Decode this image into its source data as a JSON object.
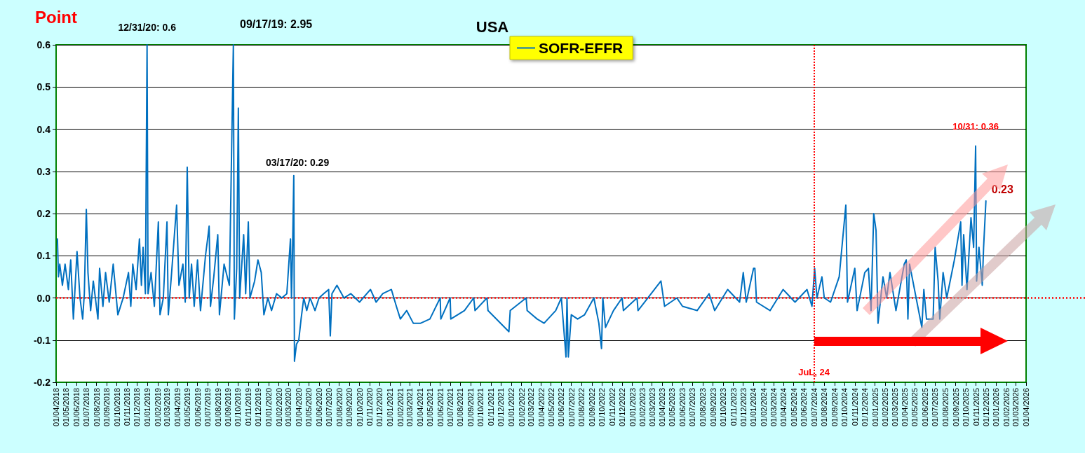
{
  "chart_data": {
    "type": "line",
    "title": "USA",
    "ylabel": "Point",
    "legend": "top",
    "annotations": [
      {
        "text": "12/31/20: 0.6",
        "x": "2018-12-31",
        "y": 0.6
      },
      "09/17/19: 2.95",
      {
        "text": "03/17/20: 0.29",
        "x": "2020-03-17",
        "y": 0.29
      },
      {
        "text": "10/31: 0.36",
        "x": "2025-10-31",
        "y": 0.36
      },
      {
        "text": "0.23",
        "x": "2025-12-01",
        "y": 0.23
      }
    ],
    "grid": "y",
    "marker": "none",
    "line_style": "solid",
    "ylim": [
      -0.2,
      0.6
    ],
    "yticks": [
      -0.2,
      -0.1,
      {
        "value": 0,
        "label": "0.0"
      },
      0.1,
      0.2,
      0.3,
      0.4,
      0.5,
      0.6
    ],
    "xlim": [
      "2018-04-01",
      "2026-04-01"
    ],
    "xticks": [
      {
        "value": "2018-04-01",
        "label": "01/04/2018"
      },
      {
        "value": "2018-05-01",
        "label": "01/05/2018"
      },
      {
        "value": "2018-06-01",
        "label": "01/06/2018"
      },
      {
        "value": "2018-07-01",
        "label": "01/07/2018"
      },
      {
        "value": "2018-08-01",
        "label": "01/08/2018"
      },
      {
        "value": "2018-09-01",
        "label": "01/09/2018"
      },
      {
        "value": "2018-10-01",
        "label": "01/10/2018"
      },
      {
        "value": "2018-11-01",
        "label": "01/11/2018"
      },
      {
        "value": "2018-12-01",
        "label": "01/12/2018"
      },
      {
        "value": "2019-01-01",
        "label": "01/01/2019"
      },
      {
        "value": "2019-02-01",
        "label": "01/02/2019"
      },
      {
        "value": "2019-03-01",
        "label": "01/03/2019"
      },
      {
        "value": "2019-04-01",
        "label": "01/04/2019"
      },
      {
        "value": "2019-05-01",
        "label": "01/05/2019"
      },
      {
        "value": "2019-06-01",
        "label": "01/06/2019"
      },
      {
        "value": "2019-07-01",
        "label": "01/07/2019"
      },
      {
        "value": "2019-08-01",
        "label": "01/08/2019"
      },
      {
        "value": "2019-09-01",
        "label": "01/09/2019"
      },
      {
        "value": "2019-10-01",
        "label": "01/10/2019"
      },
      {
        "value": "2019-11-01",
        "label": "01/11/2019"
      },
      {
        "value": "2019-12-01",
        "label": "01/12/2019"
      },
      {
        "value": "2020-01-01",
        "label": "01/01/2020"
      },
      {
        "value": "2020-02-01",
        "label": "01/02/2020"
      },
      {
        "value": "2020-03-01",
        "label": "01/03/2020"
      },
      {
        "value": "2020-04-01",
        "label": "01/04/2020"
      },
      {
        "value": "2020-05-01",
        "label": "01/05/2020"
      },
      {
        "value": "2020-06-01",
        "label": "01/06/2020"
      },
      {
        "value": "2020-07-01",
        "label": "01/07/2020"
      },
      {
        "value": "2020-08-01",
        "label": "01/08/2020"
      },
      {
        "value": "2020-09-01",
        "label": "01/09/2020"
      },
      {
        "value": "2020-10-01",
        "label": "01/10/2020"
      },
      {
        "value": "2020-11-01",
        "label": "01/11/2020"
      },
      {
        "value": "2020-12-01",
        "label": "01/12/2020"
      },
      {
        "value": "2021-01-01",
        "label": "01/01/2021"
      },
      {
        "value": "2021-02-01",
        "label": "01/02/2021"
      },
      {
        "value": "2021-03-01",
        "label": "01/03/2021"
      },
      {
        "value": "2021-04-01",
        "label": "01/04/2021"
      },
      {
        "value": "2021-05-01",
        "label": "01/05/2021"
      },
      {
        "value": "2021-06-01",
        "label": "01/06/2021"
      },
      {
        "value": "2021-07-01",
        "label": "01/07/2021"
      },
      {
        "value": "2021-08-01",
        "label": "01/08/2021"
      },
      {
        "value": "2021-09-01",
        "label": "01/09/2021"
      },
      {
        "value": "2021-10-01",
        "label": "01/10/2021"
      },
      {
        "value": "2021-11-01",
        "label": "01/11/2021"
      },
      {
        "value": "2021-12-01",
        "label": "01/12/2021"
      },
      {
        "value": "2022-01-01",
        "label": "01/01/2022"
      },
      {
        "value": "2022-02-01",
        "label": "01/02/2022"
      },
      {
        "value": "2022-03-01",
        "label": "01/03/2022"
      },
      {
        "value": "2022-04-01",
        "label": "01/04/2022"
      },
      {
        "value": "2022-05-01",
        "label": "01/05/2022"
      },
      {
        "value": "2022-06-01",
        "label": "01/06/2022"
      },
      {
        "value": "2022-07-01",
        "label": "01/07/2022"
      },
      {
        "value": "2022-08-01",
        "label": "01/08/2022"
      },
      {
        "value": "2022-09-01",
        "label": "01/09/2022"
      },
      {
        "value": "2022-10-01",
        "label": "01/10/2022"
      },
      {
        "value": "2022-11-01",
        "label": "01/11/2022"
      },
      {
        "value": "2022-12-01",
        "label": "01/12/2022"
      },
      {
        "value": "2023-01-01",
        "label": "01/01/2023"
      },
      {
        "value": "2023-02-01",
        "label": "01/02/2023"
      },
      {
        "value": "2023-03-01",
        "label": "01/03/2023"
      },
      {
        "value": "2023-04-01",
        "label": "01/04/2023"
      },
      {
        "value": "2023-05-01",
        "label": "01/05/2023"
      },
      {
        "value": "2023-06-01",
        "label": "01/06/2023"
      },
      {
        "value": "2023-07-01",
        "label": "01/07/2023"
      },
      {
        "value": "2023-08-01",
        "label": "01/08/2023"
      },
      {
        "value": "2023-09-01",
        "label": "01/09/2023"
      },
      {
        "value": "2023-10-01",
        "label": "01/10/2023"
      },
      {
        "value": "2023-11-01",
        "label": "01/11/2023"
      },
      {
        "value": "2023-12-01",
        "label": "01/12/2023"
      },
      {
        "value": "2024-01-01",
        "label": "01/01/2024"
      },
      {
        "value": "2024-02-01",
        "label": "01/02/2024"
      },
      {
        "value": "2024-03-01",
        "label": "01/03/2024"
      },
      {
        "value": "2024-04-01",
        "label": "01/04/2024"
      },
      {
        "value": "2024-05-01",
        "label": "01/05/2024"
      },
      {
        "value": "2024-06-01",
        "label": "01/06/2024"
      },
      {
        "value": "2024-07-01",
        "label": "01/07/2024"
      },
      {
        "value": "2024-08-01",
        "label": "01/08/2024"
      },
      {
        "value": "2024-09-01",
        "label": "01/09/2024"
      },
      {
        "value": "2024-10-01",
        "label": "01/10/2024"
      },
      {
        "value": "2024-11-01",
        "label": "01/11/2024"
      },
      {
        "value": "2024-12-01",
        "label": "01/12/2024"
      },
      {
        "value": "2025-01-01",
        "label": "01/01/2025"
      },
      {
        "value": "2025-02-01",
        "label": "01/02/2025"
      },
      {
        "value": "2025-03-01",
        "label": "01/03/2025"
      },
      {
        "value": "2025-04-01",
        "label": "01/04/2025"
      },
      {
        "value": "2025-05-01",
        "label": "01/05/2025"
      },
      {
        "value": "2025-06-01",
        "label": "01/06/2025"
      },
      {
        "value": "2025-07-01",
        "label": "01/07/2025"
      },
      {
        "value": "2025-08-01",
        "label": "01/08/2025"
      },
      {
        "value": "2025-09-01",
        "label": "01/09/2025"
      },
      {
        "value": "2025-10-01",
        "label": "01/10/2025"
      },
      {
        "value": "2025-11-01",
        "label": "01/11/2025"
      },
      {
        "value": "2025-12-01",
        "label": "01/12/2025"
      },
      {
        "value": "2026-01-01",
        "label": "01/01/2026"
      },
      {
        "value": "2026-02-01",
        "label": "01/02/2026"
      },
      {
        "value": "2026-03-01",
        "label": "01/03/2026"
      },
      {
        "value": "2026-04-01",
        "label": "01/04/2026"
      }
    ],
    "ref_lines": [
      {
        "axis": "y",
        "value": 0,
        "color": "#ff0000",
        "line_style": "dotted"
      },
      {
        "axis": "x",
        "value": "2024-07-01",
        "label": "JuL, 24",
        "color": "#ff0000",
        "line_style": "dotted"
      }
    ],
    "series": [
      {
        "name": "SOFR-EFFR",
        "color": "#0070c0",
        "x": [
          "2018-04-05",
          "2018-04-08",
          "2018-04-12",
          "2018-04-20",
          "2018-04-28",
          "2018-05-08",
          "2018-05-15",
          "2018-05-23",
          "2018-06-03",
          "2018-06-12",
          "2018-06-20",
          "2018-06-25",
          "2018-07-01",
          "2018-07-06",
          "2018-07-14",
          "2018-07-22",
          "2018-08-05",
          "2018-08-10",
          "2018-08-20",
          "2018-08-28",
          "2018-09-08",
          "2018-09-20",
          "2018-10-04",
          "2018-10-20",
          "2018-11-05",
          "2018-11-12",
          "2018-11-18",
          "2018-11-28",
          "2018-12-08",
          "2018-12-14",
          "2018-12-19",
          "2018-12-26",
          "2018-12-31",
          "2019-01-03",
          "2019-01-12",
          "2019-01-22",
          "2019-02-03",
          "2019-02-08",
          "2019-02-18",
          "2019-03-01",
          "2019-03-05",
          "2019-03-15",
          "2019-03-30",
          "2019-04-06",
          "2019-04-18",
          "2019-04-25",
          "2019-05-01",
          "2019-05-07",
          "2019-05-14",
          "2019-05-22",
          "2019-06-01",
          "2019-06-10",
          "2019-06-25",
          "2019-07-03",
          "2019-07-06",
          "2019-07-10",
          "2019-07-20",
          "2019-08-01",
          "2019-08-06",
          "2019-08-20",
          "2019-09-05",
          "2019-09-17",
          "2019-09-20",
          "2019-09-27",
          "2019-10-02",
          "2019-10-06",
          "2019-10-18",
          "2019-10-24",
          "2019-11-01",
          "2019-11-06",
          "2019-11-20",
          "2019-11-30",
          "2019-12-10",
          "2019-12-18",
          "2019-12-30",
          "2020-01-10",
          "2020-01-25",
          "2020-02-10",
          "2020-02-25",
          "2020-03-07",
          "2020-03-10",
          "2020-03-13",
          "2020-03-17",
          "2020-03-19",
          "2020-03-25",
          "2020-04-01",
          "2020-04-08",
          "2020-04-16",
          "2020-04-25",
          "2020-05-05",
          "2020-05-20",
          "2020-06-01",
          "2020-06-15",
          "2020-06-30",
          "2020-07-05",
          "2020-07-10",
          "2020-07-25",
          "2020-08-15",
          "2020-09-05",
          "2020-10-01",
          "2020-11-03",
          "2020-11-20",
          "2020-12-10",
          "2021-01-05",
          "2021-01-20",
          "2021-02-01",
          "2021-02-20",
          "2021-03-12",
          "2021-04-03",
          "2021-05-01",
          "2021-06-01",
          "2021-06-03",
          "2021-07-01",
          "2021-07-03",
          "2021-08-13",
          "2021-09-10",
          "2021-09-14",
          "2021-10-20",
          "2021-10-23",
          "2021-12-25",
          "2021-12-29",
          "2022-02-15",
          "2022-02-18",
          "2022-03-20",
          "2022-04-10",
          "2022-05-15",
          "2022-06-01",
          "2022-06-15",
          "2022-06-18",
          "2022-06-22",
          "2022-07-01",
          "2022-07-20",
          "2022-08-10",
          "2022-09-07",
          "2022-09-22",
          "2022-09-30",
          "2022-10-04",
          "2022-10-12",
          "2022-11-05",
          "2022-12-01",
          "2022-12-05",
          "2023-01-15",
          "2023-01-18",
          "2023-03-28",
          "2023-04-08",
          "2023-05-15",
          "2023-06-01",
          "2023-07-15",
          "2023-08-20",
          "2023-09-06",
          "2023-10-15",
          "2023-11-20",
          "2023-12-01",
          "2023-12-10",
          "2024-01-01",
          "2024-01-05",
          "2024-01-10",
          "2024-02-20",
          "2024-03-30",
          "2024-05-05",
          "2024-06-10",
          "2024-06-25",
          "2024-07-03",
          "2024-07-10",
          "2024-07-25",
          "2024-08-01",
          "2024-08-20",
          "2024-09-15",
          "2024-10-05",
          "2024-10-10",
          "2024-11-01",
          "2024-11-08",
          "2024-12-01",
          "2024-12-12",
          "2024-12-20",
          "2024-12-28",
          "2025-01-04",
          "2025-01-10",
          "2025-01-25",
          "2025-02-05",
          "2025-02-15",
          "2025-03-05",
          "2025-03-30",
          "2025-04-05",
          "2025-04-10",
          "2025-04-15",
          "2025-05-22",
          "2025-05-28",
          "2025-06-05",
          "2025-06-25",
          "2025-07-01",
          "2025-07-10",
          "2025-07-15",
          "2025-07-25",
          "2025-08-05",
          "2025-08-28",
          "2025-09-16",
          "2025-09-20",
          "2025-09-25",
          "2025-10-05",
          "2025-10-17",
          "2025-10-25",
          "2025-10-31",
          "2025-11-03",
          "2025-11-10",
          "2025-11-20",
          "2025-11-24",
          "2025-12-01"
        ],
        "values": [
          0.14,
          0.05,
          0.08,
          0.03,
          0.08,
          0.02,
          0.09,
          -0.05,
          0.11,
          0.0,
          -0.05,
          0.01,
          0.21,
          0.06,
          -0.03,
          0.04,
          -0.05,
          0.07,
          -0.02,
          0.06,
          -0.01,
          0.08,
          -0.04,
          0.0,
          0.06,
          -0.02,
          0.08,
          0.02,
          0.14,
          0.03,
          0.12,
          0.01,
          0.6,
          0.01,
          0.06,
          -0.02,
          0.18,
          -0.04,
          0.0,
          0.18,
          -0.04,
          0.06,
          0.22,
          0.03,
          0.08,
          -0.01,
          0.31,
          0.0,
          0.08,
          -0.02,
          0.09,
          -0.03,
          0.1,
          0.15,
          0.17,
          -0.02,
          0.05,
          0.15,
          -0.04,
          0.08,
          0.03,
          0.6,
          -0.05,
          0.07,
          0.45,
          0.0,
          0.15,
          0.01,
          0.18,
          0.0,
          0.04,
          0.09,
          0.06,
          -0.04,
          0.0,
          -0.03,
          0.01,
          0.0,
          0.01,
          0.14,
          0.0,
          0.1,
          0.29,
          -0.15,
          -0.11,
          -0.1,
          -0.05,
          0.0,
          -0.03,
          0.0,
          -0.03,
          0.0,
          0.01,
          0.02,
          -0.09,
          0.01,
          0.03,
          0.0,
          0.01,
          -0.01,
          0.02,
          -0.01,
          0.01,
          0.02,
          -0.02,
          -0.05,
          -0.03,
          -0.06,
          -0.06,
          -0.05,
          0.0,
          -0.05,
          0.0,
          -0.05,
          -0.03,
          0.0,
          -0.03,
          0.0,
          -0.03,
          -0.08,
          -0.03,
          0.0,
          -0.03,
          -0.05,
          -0.06,
          -0.03,
          0.0,
          -0.14,
          0.0,
          -0.14,
          -0.04,
          -0.05,
          -0.04,
          0.0,
          -0.06,
          -0.12,
          0.0,
          -0.07,
          -0.03,
          0.0,
          -0.03,
          0.0,
          -0.03,
          0.04,
          -0.02,
          0.0,
          -0.02,
          -0.03,
          0.01,
          -0.03,
          0.02,
          -0.01,
          0.06,
          -0.01,
          0.07,
          0.07,
          -0.01,
          -0.03,
          0.02,
          -0.01,
          0.02,
          -0.02,
          0.07,
          0.0,
          0.05,
          0.0,
          -0.01,
          0.05,
          0.22,
          -0.01,
          0.07,
          -0.03,
          0.06,
          0.07,
          -0.03,
          0.2,
          0.16,
          -0.06,
          0.05,
          0.0,
          0.06,
          -0.03,
          0.08,
          0.09,
          -0.05,
          0.08,
          -0.07,
          0.02,
          -0.05,
          -0.05,
          0.12,
          0.04,
          -0.05,
          0.06,
          0.0,
          0.09,
          0.18,
          0.03,
          0.15,
          0.02,
          0.19,
          0.12,
          0.36,
          0.04,
          0.12,
          0.03,
          0.12,
          0.23
        ]
      }
    ]
  }
}
